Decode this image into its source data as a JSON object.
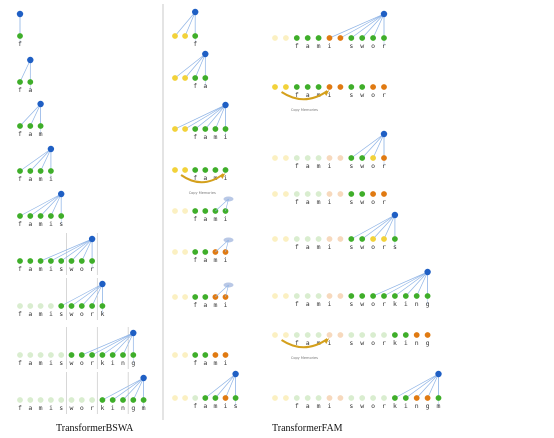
{
  "captions": {
    "left": "TransformerBSWA",
    "right": "TransformerFAM"
  },
  "copy_memories_label": "Copy Memories",
  "colors": {
    "green": "#3fae2a",
    "green_dark": "#2a8a1c",
    "faded_green": "#d9edcf",
    "yellow": "#f2d23a",
    "faded_yellow": "#fbf0c2",
    "orange": "#e07a12",
    "faded_orange": "#f7d9bd",
    "blue": "#1f5fc4",
    "line": "#8fb4e6",
    "arrow": "#d4a01c",
    "divider": "#bdbdbd"
  },
  "bswa_rows": [
    {
      "chars": [
        "f"
      ],
      "states": [
        "G"
      ],
      "dividers": [],
      "query": 0
    },
    {
      "chars": [
        "f",
        "a"
      ],
      "states": [
        "G",
        "G"
      ],
      "dividers": [],
      "query": 1
    },
    {
      "chars": [
        "f",
        "a",
        "m"
      ],
      "states": [
        "G",
        "G",
        "G"
      ],
      "dividers": [],
      "query": 2
    },
    {
      "chars": [
        "f",
        "a",
        "m",
        "i"
      ],
      "states": [
        "G",
        "G",
        "G",
        "G"
      ],
      "dividers": [],
      "query": 3
    },
    {
      "chars": [
        "f",
        "a",
        "m",
        "i",
        "s"
      ],
      "states": [
        "G",
        "G",
        "G",
        "G",
        "G"
      ],
      "dividers": [],
      "query": 4
    },
    {
      "chars": [
        "f",
        "a",
        "m",
        "i",
        "s",
        "w",
        "o",
        "r"
      ],
      "states": [
        "G",
        "G",
        "G",
        "G",
        "G",
        "G",
        "G",
        "G"
      ],
      "dividers": [
        5,
        8
      ],
      "query": 7
    },
    {
      "chars": [
        "f",
        "a",
        "m",
        "i",
        "s",
        "w",
        "o",
        "r",
        "k"
      ],
      "states": [
        "g",
        "g",
        "g",
        "g",
        "G",
        "G",
        "G",
        "G",
        "G"
      ],
      "dividers": [
        5,
        8
      ],
      "query": 8
    },
    {
      "chars": [
        "f",
        "a",
        "m",
        "i",
        "s",
        "w",
        "o",
        "r",
        "k",
        "i",
        "n",
        "g"
      ],
      "states": [
        "g",
        "g",
        "g",
        "g",
        "g",
        "G",
        "G",
        "G",
        "G",
        "G",
        "G",
        "G"
      ],
      "dividers": [
        5,
        8,
        11
      ],
      "query": 11
    },
    {
      "chars": [
        "f",
        "a",
        "m",
        "i",
        "s",
        "w",
        "o",
        "r",
        "k",
        "i",
        "n",
        "g",
        "m"
      ],
      "states": [
        "g",
        "g",
        "g",
        "g",
        "g",
        "g",
        "g",
        "g",
        "G",
        "G",
        "G",
        "G",
        "G"
      ],
      "dividers": [
        5,
        8,
        11
      ],
      "query": 12
    }
  ],
  "fam_mid_rows": [
    {
      "chars": [
        "",
        "",
        "f"
      ],
      "states": [
        "Y",
        "Y",
        "G"
      ],
      "query": 2,
      "arrow": false,
      "memq": false
    },
    {
      "chars": [
        "",
        "",
        "f",
        "a"
      ],
      "states": [
        "Y",
        "Y",
        "G",
        "G"
      ],
      "query": 3,
      "arrow": false,
      "memq": false
    },
    {
      "chars": [
        "",
        "",
        "f",
        "a",
        "m",
        "i"
      ],
      "states": [
        "Y",
        "Y",
        "G",
        "G",
        "G",
        "G"
      ],
      "query": 5,
      "arrow": false,
      "memq": false
    },
    {
      "chars": [
        "",
        "",
        "f",
        "a",
        "m",
        "i"
      ],
      "states": [
        "Y",
        "Y",
        "G",
        "G",
        "G",
        "G"
      ],
      "query": -1,
      "arrow": true,
      "memq": false
    },
    {
      "chars": [
        "",
        "",
        "f",
        "a",
        "m",
        "i"
      ],
      "states": [
        "y",
        "y",
        "G",
        "G",
        "G",
        "G"
      ],
      "query": -1,
      "arrow": false,
      "memq": true,
      "orange": [
        4
      ]
    },
    {
      "chars": [
        "",
        "",
        "f",
        "a",
        "m",
        "i"
      ],
      "states": [
        "y",
        "y",
        "G",
        "G",
        "O",
        "O"
      ],
      "query": -1,
      "arrow": false,
      "memq": true,
      "orange": [
        4,
        5
      ]
    },
    {
      "chars": [
        "",
        "",
        "f",
        "a",
        "m",
        "i"
      ],
      "states": [
        "y",
        "y",
        "G",
        "G",
        "O",
        "O"
      ],
      "query": -1,
      "arrow": false,
      "memq": true,
      "orange": [
        4,
        5
      ]
    },
    {
      "chars": [
        "",
        "",
        "f",
        "a",
        "m",
        "i"
      ],
      "states": [
        "y",
        "y",
        "G",
        "G",
        "O",
        "O"
      ],
      "query": -1,
      "arrow": false,
      "memq": false
    },
    {
      "chars": [
        "",
        "",
        "f",
        "a",
        "m",
        "i",
        "s"
      ],
      "states": [
        "y",
        "y",
        "g",
        "G",
        "G",
        "O",
        "G"
      ],
      "query": 6,
      "arrow": false,
      "memq": false
    }
  ],
  "fam_right_rows": [
    {
      "chars": [
        "",
        "",
        "f",
        "a",
        "m",
        "i",
        "",
        "s",
        "w",
        "o",
        "r"
      ],
      "states": [
        "y",
        "y",
        "G",
        "G",
        "G",
        "O",
        "O",
        "G",
        "G",
        "G",
        "G"
      ],
      "query": 10,
      "arrow": false
    },
    {
      "chars": [
        "",
        "",
        "f",
        "a",
        "m",
        "i",
        "",
        "s",
        "w",
        "o",
        "r"
      ],
      "states": [
        "Y",
        "Y",
        "G",
        "G",
        "G",
        "O",
        "O",
        "G",
        "G",
        "O",
        "O"
      ],
      "query": -1,
      "arrow": true
    },
    {
      "chars": [
        "",
        "",
        "f",
        "a",
        "m",
        "i",
        "",
        "s",
        "w",
        "o",
        "r"
      ],
      "states": [
        "y",
        "y",
        "g",
        "g",
        "g",
        "o",
        "o",
        "G",
        "G",
        "Y",
        "O"
      ],
      "query": 10,
      "arrow": false
    },
    {
      "chars": [
        "",
        "",
        "f",
        "a",
        "m",
        "i",
        "",
        "s",
        "w",
        "o",
        "r"
      ],
      "states": [
        "y",
        "y",
        "g",
        "g",
        "g",
        "o",
        "o",
        "G",
        "G",
        "O",
        "O"
      ],
      "query": -1,
      "arrow": false
    },
    {
      "chars": [
        "",
        "",
        "f",
        "a",
        "m",
        "i",
        "",
        "s",
        "w",
        "o",
        "r",
        "s"
      ],
      "states": [
        "y",
        "y",
        "g",
        "g",
        "g",
        "o",
        "o",
        "G",
        "G",
        "Y",
        "Y",
        "G"
      ],
      "query": 11,
      "arrow": false
    },
    {
      "chars": [
        "",
        "",
        "f",
        "a",
        "m",
        "i",
        "",
        "s",
        "w",
        "o",
        "r",
        "k",
        "i",
        "n",
        "g"
      ],
      "states": [
        "y",
        "y",
        "g",
        "g",
        "g",
        "o",
        "o",
        "G",
        "G",
        "G",
        "G",
        "G",
        "G",
        "G",
        "G"
      ],
      "query": 14,
      "arrow": false
    },
    {
      "chars": [
        "",
        "",
        "f",
        "a",
        "m",
        "i",
        "",
        "s",
        "w",
        "o",
        "r",
        "k",
        "i",
        "n",
        "g"
      ],
      "states": [
        "y",
        "y",
        "g",
        "g",
        "g",
        "o",
        "o",
        "g",
        "g",
        "g",
        "g",
        "G",
        "G",
        "O",
        "O"
      ],
      "query": -1,
      "arrow": true
    },
    {
      "chars": [
        "",
        "",
        "f",
        "a",
        "m",
        "i",
        "",
        "s",
        "w",
        "o",
        "r",
        "k",
        "i",
        "n",
        "g",
        "m"
      ],
      "states": [
        "y",
        "y",
        "g",
        "g",
        "g",
        "o",
        "o",
        "g",
        "g",
        "g",
        "g",
        "G",
        "G",
        "O",
        "O",
        "G"
      ],
      "query": 15,
      "arrow": false
    }
  ]
}
